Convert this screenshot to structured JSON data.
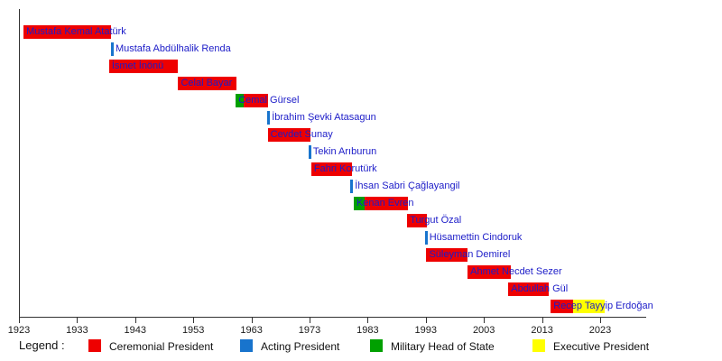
{
  "chart_data": {
    "type": "bar",
    "variant": "horizontal-timeline-gantt",
    "title": "",
    "xlabel": "",
    "ylabel": "",
    "grid": false,
    "x_axis": {
      "unit": "year",
      "min": 1923,
      "max": 2031,
      "ticks": [
        1923,
        1933,
        1943,
        1953,
        1963,
        1973,
        1983,
        1993,
        2003,
        2013,
        2023
      ],
      "tick_labels": [
        "1923",
        "1933",
        "1943",
        "1953",
        "1963",
        "1973",
        "1983",
        "1993",
        "2003",
        "2013",
        "2023"
      ]
    },
    "role_colors": {
      "Ceremonial President": "#ee0000",
      "Acting President": "#1874cd",
      "Military Head of State": "#00a000",
      "Executive President": "#ffff00"
    },
    "series": [
      {
        "name": "Mustafa Kemal Atatürk",
        "segments": [
          {
            "role": "Ceremonial President",
            "start": 1923.8,
            "end": 1938.9
          }
        ]
      },
      {
        "name": "Mustafa Abdülhalik Renda",
        "segments": [
          {
            "role": "Acting President",
            "start": 1938.9,
            "end": 1939.3
          }
        ]
      },
      {
        "name": "İsmet İnönü",
        "segments": [
          {
            "role": "Ceremonial President",
            "start": 1938.5,
            "end": 1950.4
          }
        ]
      },
      {
        "name": "Celal Bayar",
        "segments": [
          {
            "role": "Ceremonial President",
            "start": 1950.4,
            "end": 1960.4
          }
        ]
      },
      {
        "name": "Cemal Gürsel",
        "segments": [
          {
            "role": "Military Head of State",
            "start": 1960.3,
            "end": 1961.7
          },
          {
            "role": "Ceremonial President",
            "start": 1961.7,
            "end": 1965.9
          }
        ]
      },
      {
        "name": "İbrahim Şevki Atasagun",
        "segments": [
          {
            "role": "Acting President",
            "start": 1965.7,
            "end": 1966.2
          }
        ]
      },
      {
        "name": "Cevdet Sunay",
        "segments": [
          {
            "role": "Ceremonial President",
            "start": 1965.8,
            "end": 1973.2
          }
        ]
      },
      {
        "name": "Tekin Arıburun",
        "segments": [
          {
            "role": "Acting President",
            "start": 1972.9,
            "end": 1973.3
          }
        ]
      },
      {
        "name": "Fahri Korutürk",
        "segments": [
          {
            "role": "Ceremonial President",
            "start": 1973.3,
            "end": 1980.3
          }
        ]
      },
      {
        "name": "İhsan Sabri Çağlayangil",
        "segments": [
          {
            "role": "Acting President",
            "start": 1980.0,
            "end": 1980.5
          }
        ]
      },
      {
        "name": "Kenan Evren",
        "segments": [
          {
            "role": "Military Head of State",
            "start": 1980.6,
            "end": 1982.5
          },
          {
            "role": "Ceremonial President",
            "start": 1982.5,
            "end": 1989.9
          }
        ]
      },
      {
        "name": "Turgut Özal",
        "segments": [
          {
            "role": "Ceremonial President",
            "start": 1989.8,
            "end": 1993.2
          }
        ]
      },
      {
        "name": "Hüsamettin Cindoruk",
        "segments": [
          {
            "role": "Acting President",
            "start": 1992.9,
            "end": 1993.3
          }
        ]
      },
      {
        "name": "Süleyman Demirel",
        "segments": [
          {
            "role": "Ceremonial President",
            "start": 1993.1,
            "end": 2000.2
          }
        ]
      },
      {
        "name": "Ahmet Necdet Sezer",
        "segments": [
          {
            "role": "Ceremonial President",
            "start": 2000.2,
            "end": 2007.6
          }
        ]
      },
      {
        "name": "Abdullah Gül",
        "segments": [
          {
            "role": "Ceremonial President",
            "start": 2007.2,
            "end": 2014.2
          }
        ]
      },
      {
        "name": "Recep Tayyip Erdoğan",
        "segments": [
          {
            "role": "Ceremonial President",
            "start": 2014.5,
            "end": 2018.4
          },
          {
            "role": "Executive President",
            "start": 2018.4,
            "end": 2023.8
          }
        ]
      }
    ],
    "legend": {
      "title": "Legend :",
      "position": "bottom",
      "items": [
        {
          "label": "Ceremonial President",
          "color": "#ee0000"
        },
        {
          "label": "Acting President",
          "color": "#1874cd"
        },
        {
          "label": "Military Head of State",
          "color": "#00a000"
        },
        {
          "label": "Executive President",
          "color": "#ffff00"
        }
      ]
    }
  },
  "colors": {
    "background": "#ffffff",
    "axis": "#333333",
    "bar_label_text": "#1c1cc8",
    "tick_label_text": "#1a1a1a"
  }
}
